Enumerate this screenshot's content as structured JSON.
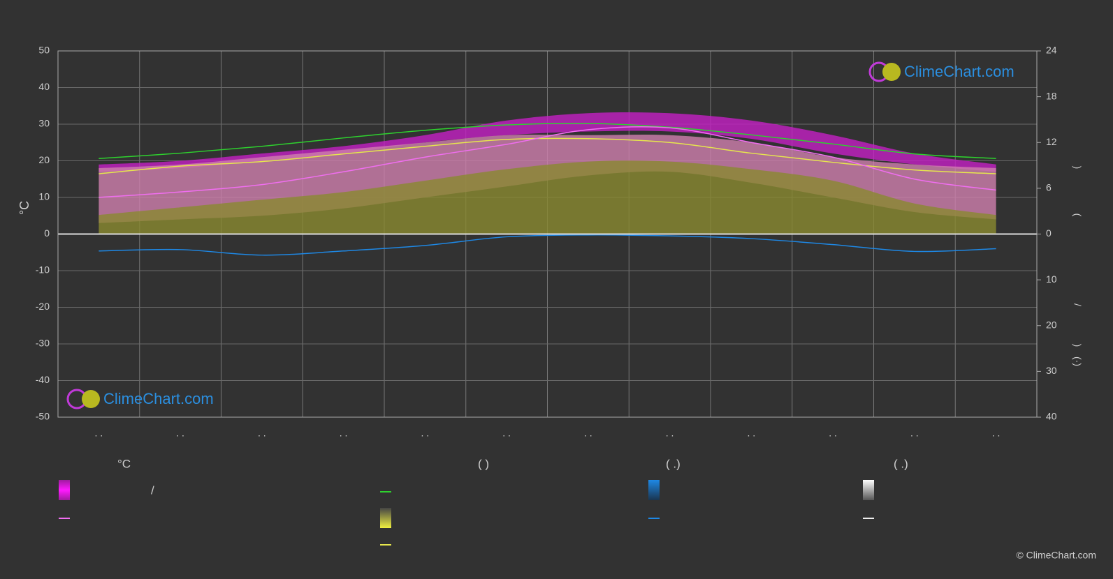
{
  "chart_data": {
    "type": "line",
    "y_label": "°C",
    "categories": [
      ". .",
      ". .",
      ". .",
      ". .",
      ". .",
      ". .",
      ". .",
      ". .",
      ". .",
      ". .",
      ". .",
      ". ."
    ],
    "ylim": [
      -50,
      50
    ],
    "yticks": [
      -50,
      -40,
      -30,
      -20,
      -10,
      0,
      10,
      20,
      30,
      40,
      50
    ],
    "y2lim": [
      0,
      24
    ],
    "y2ticks": [
      0,
      6,
      12,
      18,
      24
    ],
    "y3lim": [
      0,
      40
    ],
    "y3ticks": [
      0,
      10,
      20,
      30,
      40
    ],
    "right_axis_labels": [
      ")",
      "(",
      "/",
      ")",
      "(·)"
    ],
    "grid": true,
    "series": [
      {
        "type": "area",
        "color": "#c41fc4",
        "values": [
          19,
          20,
          22,
          24,
          27,
          31,
          33,
          33,
          31,
          27,
          22,
          19
        ],
        "lower": [
          17,
          18,
          20,
          22,
          25,
          27,
          28,
          28,
          26,
          22,
          19,
          17
        ]
      },
      {
        "type": "area",
        "color": "#cf7fae",
        "values": [
          18,
          19,
          21,
          23,
          25,
          27,
          27,
          27,
          25,
          21,
          19,
          18
        ],
        "lower": [
          3,
          4,
          5,
          7,
          10,
          13,
          16,
          17,
          14,
          10,
          6,
          4
        ]
      },
      {
        "type": "area",
        "axis": "y2",
        "color": "#8a8a30",
        "values": [
          2.5,
          3.5,
          4.5,
          5.5,
          7,
          8.5,
          9.5,
          9.5,
          8.5,
          7,
          4,
          2.5
        ]
      },
      {
        "type": "line",
        "axis": "y2",
        "color": "#2ed12e",
        "values": [
          9.9,
          10.6,
          11.5,
          12.6,
          13.6,
          14.3,
          14.5,
          14.0,
          13.0,
          11.8,
          10.5,
          9.9
        ]
      },
      {
        "type": "line",
        "axis": "y2",
        "color": "#e6e64d",
        "values": [
          7.9,
          8.9,
          9.5,
          10.5,
          11.5,
          12.4,
          12.5,
          12.0,
          10.6,
          9.4,
          8.4,
          7.9
        ]
      },
      {
        "type": "line",
        "color": "#f06ef0",
        "values": [
          10,
          11.5,
          13.5,
          17,
          21,
          24.5,
          28.5,
          29,
          25,
          21,
          15,
          12
        ]
      },
      {
        "type": "line",
        "axis": "y3",
        "color": "#1e88e5",
        "values": [
          3.7,
          3.4,
          4.6,
          3.7,
          2.5,
          0.6,
          0.2,
          0.4,
          1.0,
          2.3,
          3.8,
          3.2
        ]
      }
    ]
  },
  "logo_text": "ClimeChart.com",
  "copyright": "© ClimeChart.com",
  "legend": {
    "headers": [
      "°C",
      "(        )",
      "(    .)",
      "(    .)"
    ],
    "separator": "/"
  }
}
